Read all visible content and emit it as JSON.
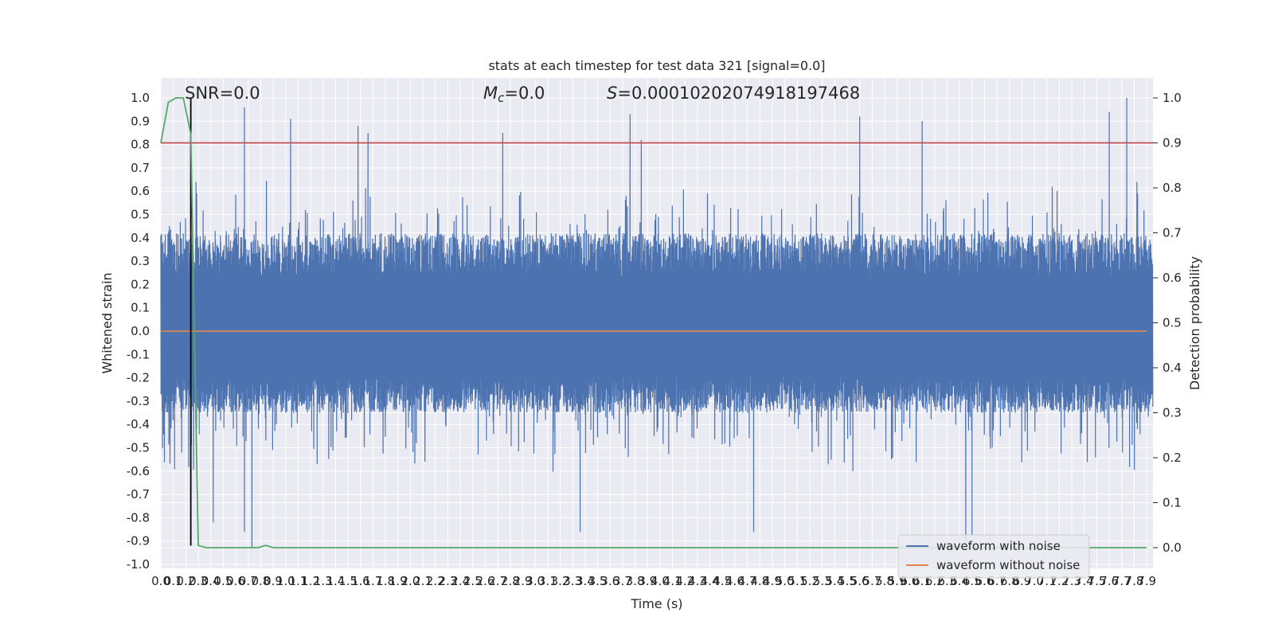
{
  "chart_data": {
    "type": "line",
    "title": "stats at each timestep for test data 321 [signal=0.0]",
    "xlabel": "Time (s)",
    "ylabel": "Whitened strain",
    "y2label": "Detection probability",
    "xlim": [
      0.0,
      7.95
    ],
    "ylim": [
      -1.05,
      1.05
    ],
    "y2lim": [
      -0.05,
      1.05
    ],
    "x_ticks": [
      "0.0",
      "0.1",
      "0.2",
      "0.3",
      "0.4",
      "0.5",
      "0.6",
      "0.7",
      "0.8",
      "0.9",
      "1.0",
      "1.1",
      "1.2",
      "1.3",
      "1.4",
      "1.5",
      "1.6",
      "1.7",
      "1.8",
      "1.9",
      "2.0",
      "2.1",
      "2.2",
      "2.3",
      "2.4",
      "2.5",
      "2.6",
      "2.7",
      "2.8",
      "2.9",
      "3.0",
      "3.1",
      "3.2",
      "3.3",
      "3.4",
      "3.5",
      "3.6",
      "3.7",
      "3.8",
      "3.9",
      "4.0",
      "4.1",
      "4.2",
      "4.3",
      "4.4",
      "4.5",
      "4.6",
      "4.7",
      "4.8",
      "4.9",
      "5.0",
      "5.1",
      "5.2",
      "5.3",
      "5.4",
      "5.5",
      "5.6",
      "5.7",
      "5.8",
      "5.9",
      "6.0",
      "6.1",
      "6.2",
      "6.3",
      "6.4",
      "6.5",
      "6.6",
      "6.7",
      "6.8",
      "6.9",
      "7.0",
      "7.1",
      "7.2",
      "7.3",
      "7.4",
      "7.5",
      "7.6",
      "7.7",
      "7.8",
      "7.9"
    ],
    "y_ticks": [
      "1.0",
      "0.9",
      "0.8",
      "0.7",
      "0.6",
      "0.5",
      "0.4",
      "0.3",
      "0.2",
      "0.1",
      "0.0",
      "-0.1",
      "-0.2",
      "-0.3",
      "-0.4",
      "-0.5",
      "-0.6",
      "-0.7",
      "-0.8",
      "-0.9",
      "-1.0"
    ],
    "y2_ticks": [
      "1.0",
      "0.9",
      "0.8",
      "0.7",
      "0.6",
      "0.5",
      "0.4",
      "0.3",
      "0.2",
      "0.1",
      "0.0"
    ],
    "annotations": {
      "snr": "SNR=0.0",
      "mc_symbol": "M",
      "mc_sub": "c",
      "mc_value": "=0.0",
      "s_symbol": "S",
      "s_value": "=0.00010202074918197468"
    },
    "grid": true,
    "legend_position": "lower right",
    "series": [
      {
        "name": "waveform with noise",
        "color": "#4c72b0",
        "description_kind": "dense noise",
        "x_range": [
          0.0,
          7.95
        ],
        "band_typical": [
          -0.35,
          0.42
        ],
        "extremes": [
          {
            "x": 0.67,
            "y": 0.96
          },
          {
            "x": 1.04,
            "y": 0.91
          },
          {
            "x": 1.58,
            "y": 0.88
          },
          {
            "x": 1.66,
            "y": 0.85
          },
          {
            "x": 2.74,
            "y": 0.85
          },
          {
            "x": 3.76,
            "y": 0.93
          },
          {
            "x": 3.85,
            "y": 0.82
          },
          {
            "x": 5.6,
            "y": 0.92
          },
          {
            "x": 6.1,
            "y": 0.9
          },
          {
            "x": 7.6,
            "y": 0.94
          },
          {
            "x": 7.74,
            "y": 1.0
          },
          {
            "x": 0.73,
            "y": -0.93
          },
          {
            "x": 3.36,
            "y": -0.86
          },
          {
            "x": 4.75,
            "y": -0.86
          },
          {
            "x": 6.45,
            "y": -0.9
          },
          {
            "x": 6.5,
            "y": -0.88
          },
          {
            "x": 0.42,
            "y": -0.82
          },
          {
            "x": 0.67,
            "y": -0.86
          }
        ]
      },
      {
        "name": "waveform without noise",
        "color": "#dd8452",
        "x": [
          0.0,
          7.9
        ],
        "y": [
          0.0,
          0.0
        ]
      },
      {
        "name": "",
        "axis": "right",
        "color": "#55a868",
        "x": [
          0.0,
          0.06,
          0.12,
          0.18,
          0.24,
          0.3,
          0.36,
          0.72,
          0.78,
          0.84,
          0.9,
          7.9
        ],
        "y": [
          0.9,
          0.99,
          1.0,
          1.0,
          0.92,
          0.005,
          0.0,
          0.0,
          0.0,
          0.005,
          0.0,
          0.0
        ]
      },
      {
        "name": "",
        "axis": "right",
        "color": "#c44e52",
        "kind": "hline",
        "y": 0.9
      },
      {
        "name": "",
        "color": "#000000",
        "kind": "vline",
        "x": 0.24,
        "y_range": [
          -0.92,
          1.0
        ]
      }
    ]
  }
}
